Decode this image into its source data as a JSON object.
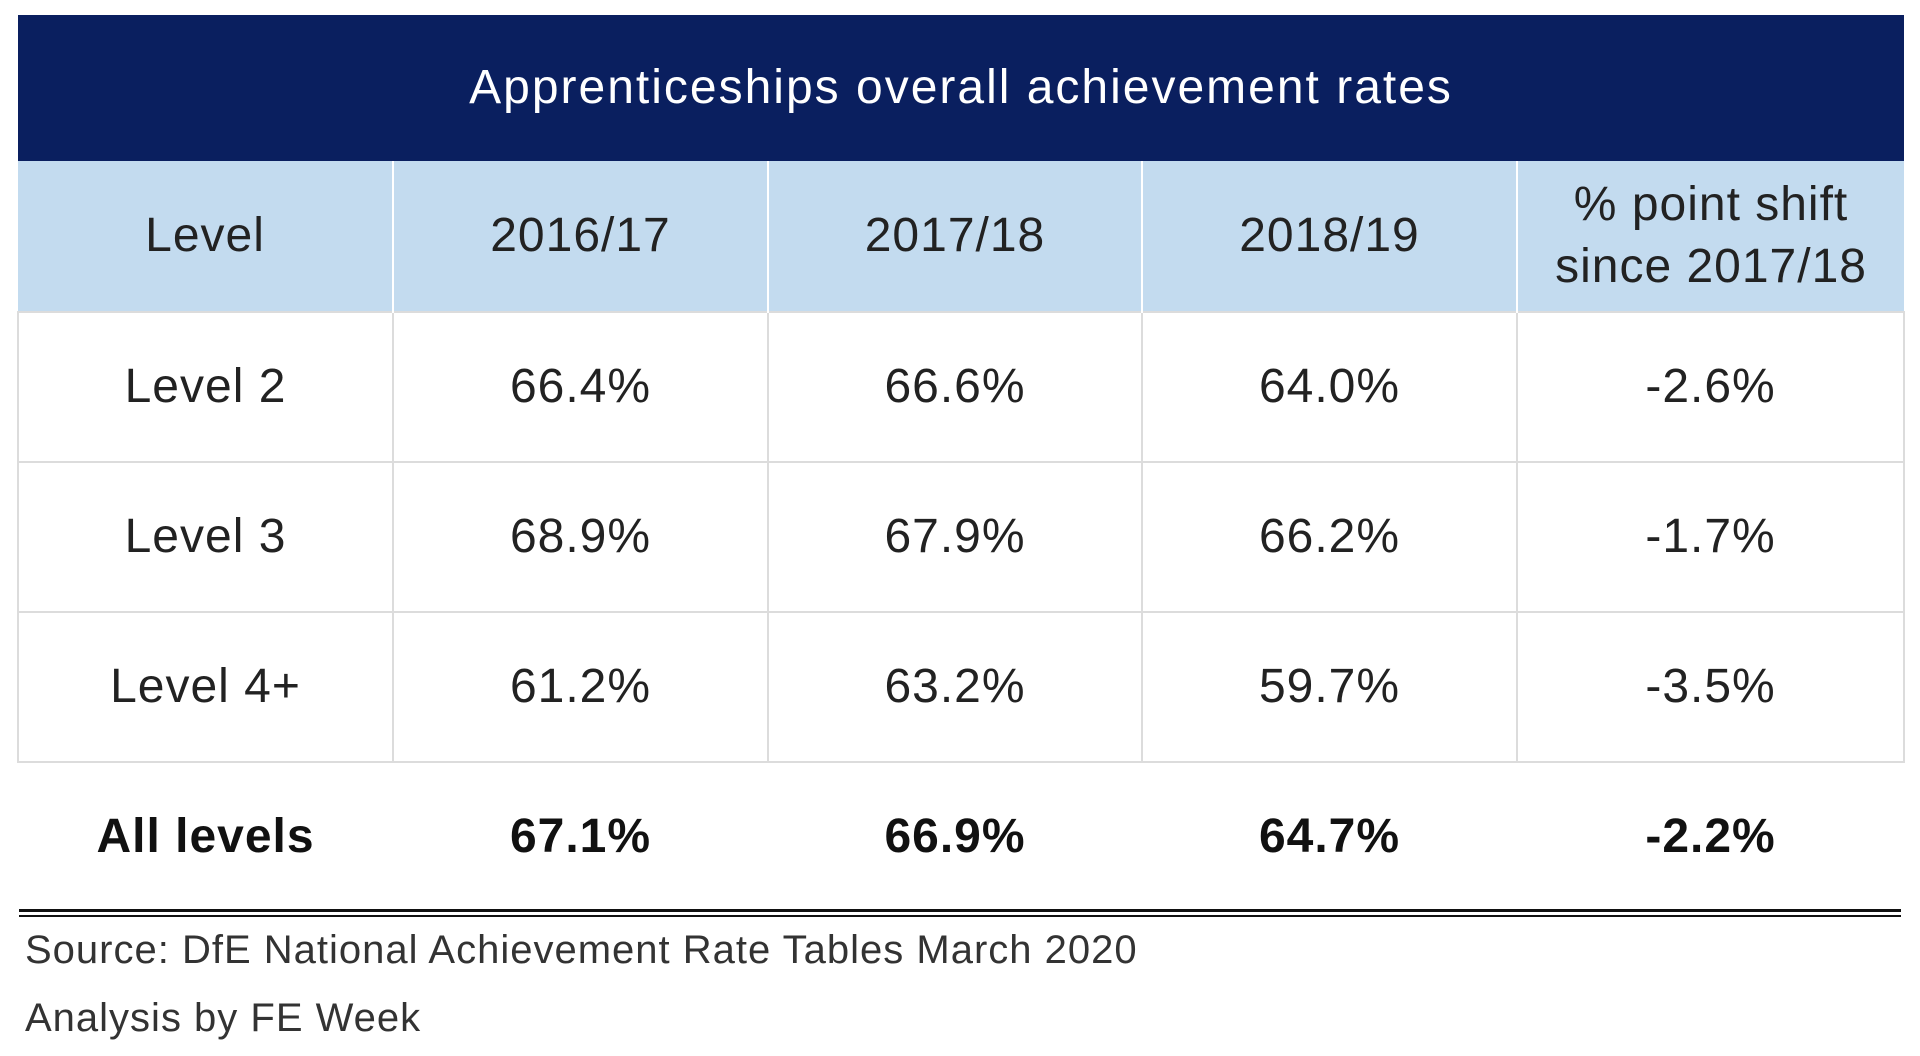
{
  "table": {
    "title": "Apprenticeships overall achievement rates",
    "header": [
      "Level",
      "2016/17",
      "2017/18",
      "2018/19",
      "% point shift since 2017/18"
    ],
    "rows": [
      [
        "Level 2",
        "66.4%",
        "66.6%",
        "64.0%",
        "-2.6%"
      ],
      [
        "Level 3",
        "68.9%",
        "67.9%",
        "66.2%",
        "-1.7%"
      ],
      [
        "Level 4+",
        "61.2%",
        "63.2%",
        "59.7%",
        "-3.5%"
      ]
    ],
    "total": [
      "All levels",
      "67.1%",
      "66.9%",
      "64.7%",
      "-2.2%"
    ]
  },
  "footer": {
    "source": "Source: DfE National Achievement Rate Tables March 2020",
    "analysis": "Analysis by FE Week"
  }
}
